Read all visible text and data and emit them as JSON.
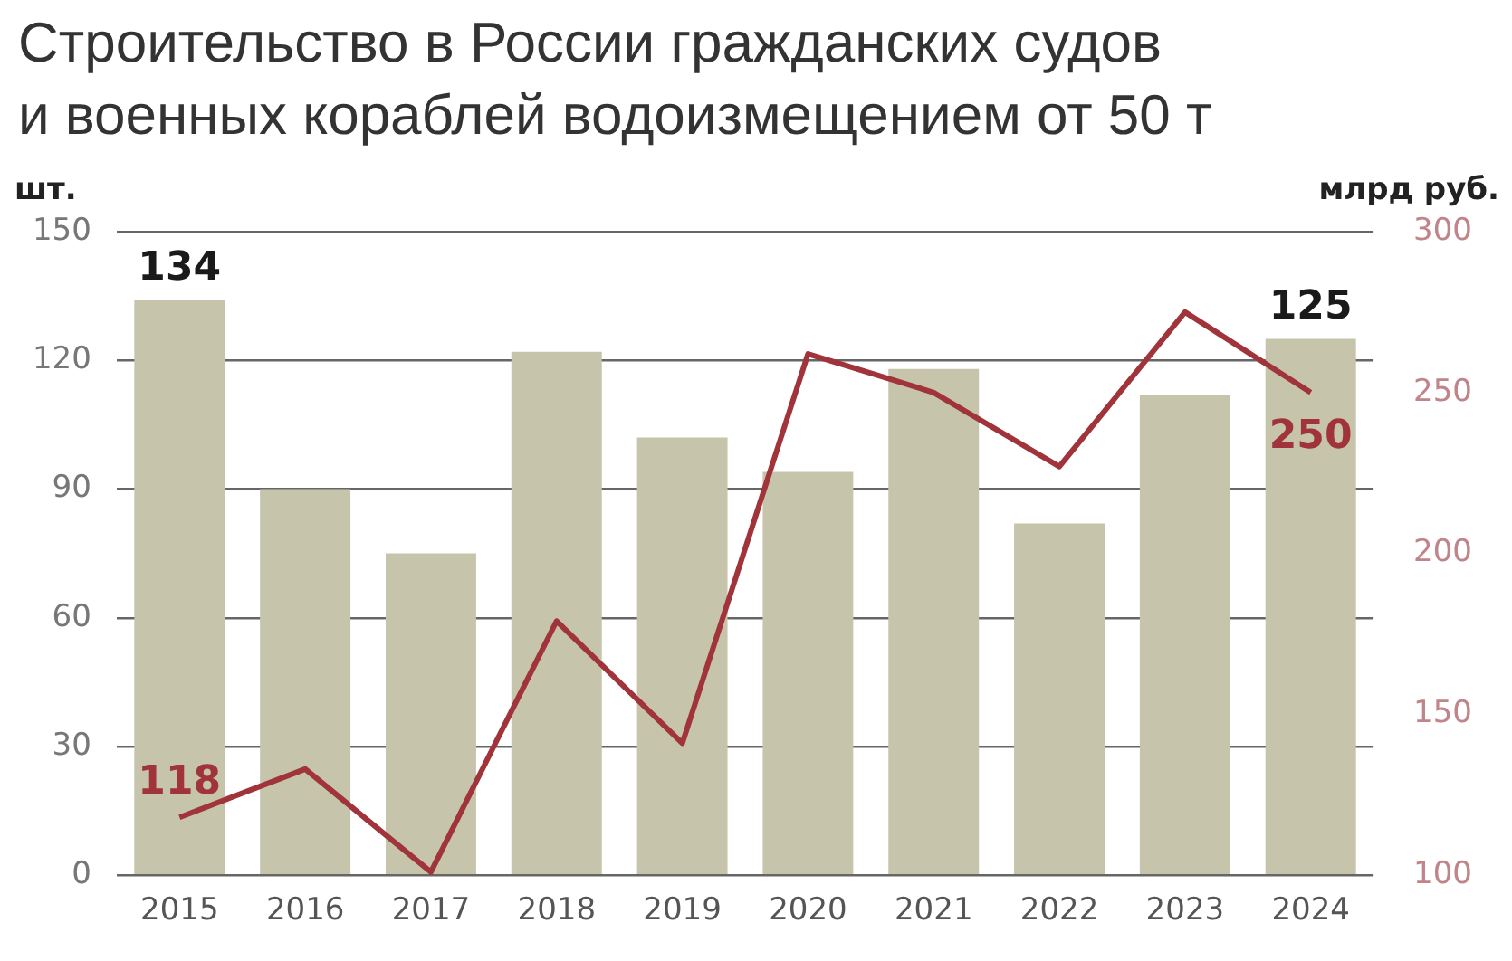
{
  "chart_data": {
    "type": "bar",
    "title": "Строительство в России гражданских судов\nи военных кораблей водоизмещением от 50 т",
    "ylabel": "шт.",
    "y2label": "млрд руб.",
    "categories": [
      "2015",
      "2016",
      "2017",
      "2018",
      "2019",
      "2020",
      "2021",
      "2022",
      "2023",
      "2024"
    ],
    "series": [
      {
        "color": "#c6c5ac",
        "values": [
          134,
          90,
          75,
          122,
          102,
          94,
          118,
          82,
          112,
          125
        ],
        "value_labels": [
          "134",
          null,
          null,
          null,
          null,
          null,
          null,
          null,
          null,
          "125"
        ]
      },
      {
        "type": "line",
        "axis": "y2",
        "color": "#a0343a",
        "values": [
          118,
          133,
          101,
          179,
          141,
          262,
          250,
          227,
          275,
          250
        ],
        "value_labels": [
          "118",
          null,
          null,
          null,
          null,
          null,
          null,
          null,
          null,
          "250"
        ]
      }
    ],
    "ylim": [
      0,
      150
    ],
    "yticks": [
      0,
      30,
      60,
      90,
      120,
      150
    ],
    "y2lim": [
      100,
      300
    ],
    "y2ticks": [
      100,
      150,
      200,
      250,
      300
    ],
    "grid": "y",
    "legend": false,
    "marker": "none"
  }
}
